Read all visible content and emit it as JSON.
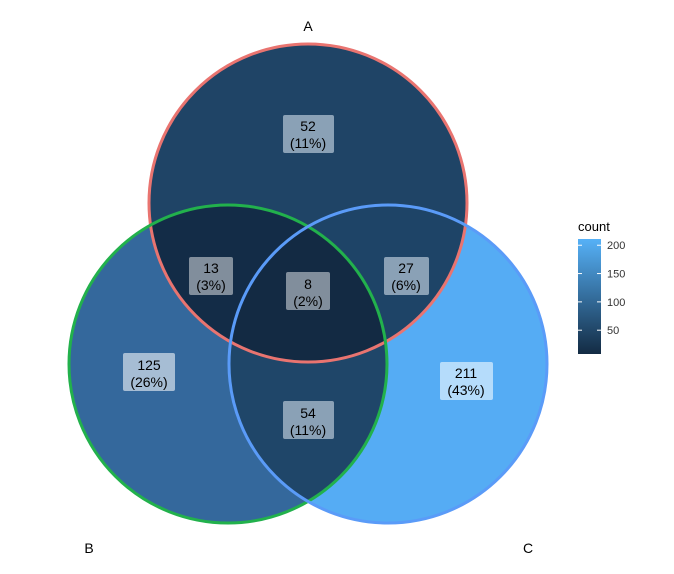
{
  "diagram": {
    "type": "venn",
    "sets": [
      {
        "key": "A",
        "label": "A",
        "border_color": "#e97470"
      },
      {
        "key": "B",
        "label": "B",
        "border_color": "#22b14c"
      },
      {
        "key": "C",
        "label": "C",
        "border_color": "#5a9bf8"
      }
    ],
    "regions": [
      {
        "key": "A_only",
        "count": "52",
        "percent": "(11%)",
        "fill": "#1f4466",
        "label_bg": "#8aa1b6"
      },
      {
        "key": "B_only",
        "count": "125",
        "percent": "(26%)",
        "fill": "#34689c",
        "label_bg": "#a6bdd4"
      },
      {
        "key": "C_only",
        "count": "211",
        "percent": "(43%)",
        "fill": "#55acf4",
        "label_bg": "#b5dcfb"
      },
      {
        "key": "AB",
        "count": "13",
        "percent": "(3%)",
        "fill": "#132c47",
        "label_bg": "#818e9c"
      },
      {
        "key": "AC",
        "count": "27",
        "percent": "(6%)",
        "fill": "#1e4467",
        "label_bg": "#8aa1b6"
      },
      {
        "key": "BC",
        "count": "54",
        "percent": "(11%)",
        "fill": "#1f4669",
        "label_bg": "#8aa1b6"
      },
      {
        "key": "ABC",
        "count": "8",
        "percent": "(2%)",
        "fill": "#132a43",
        "label_bg": "#818e9c"
      }
    ]
  },
  "legend": {
    "title": "count",
    "range": [
      8,
      211
    ],
    "ticks": [
      50,
      100,
      150,
      200
    ],
    "tick_labels": [
      "50",
      "100",
      "150",
      "200"
    ],
    "gradient_low": "#132b43",
    "gradient_high": "#56b1f7"
  }
}
